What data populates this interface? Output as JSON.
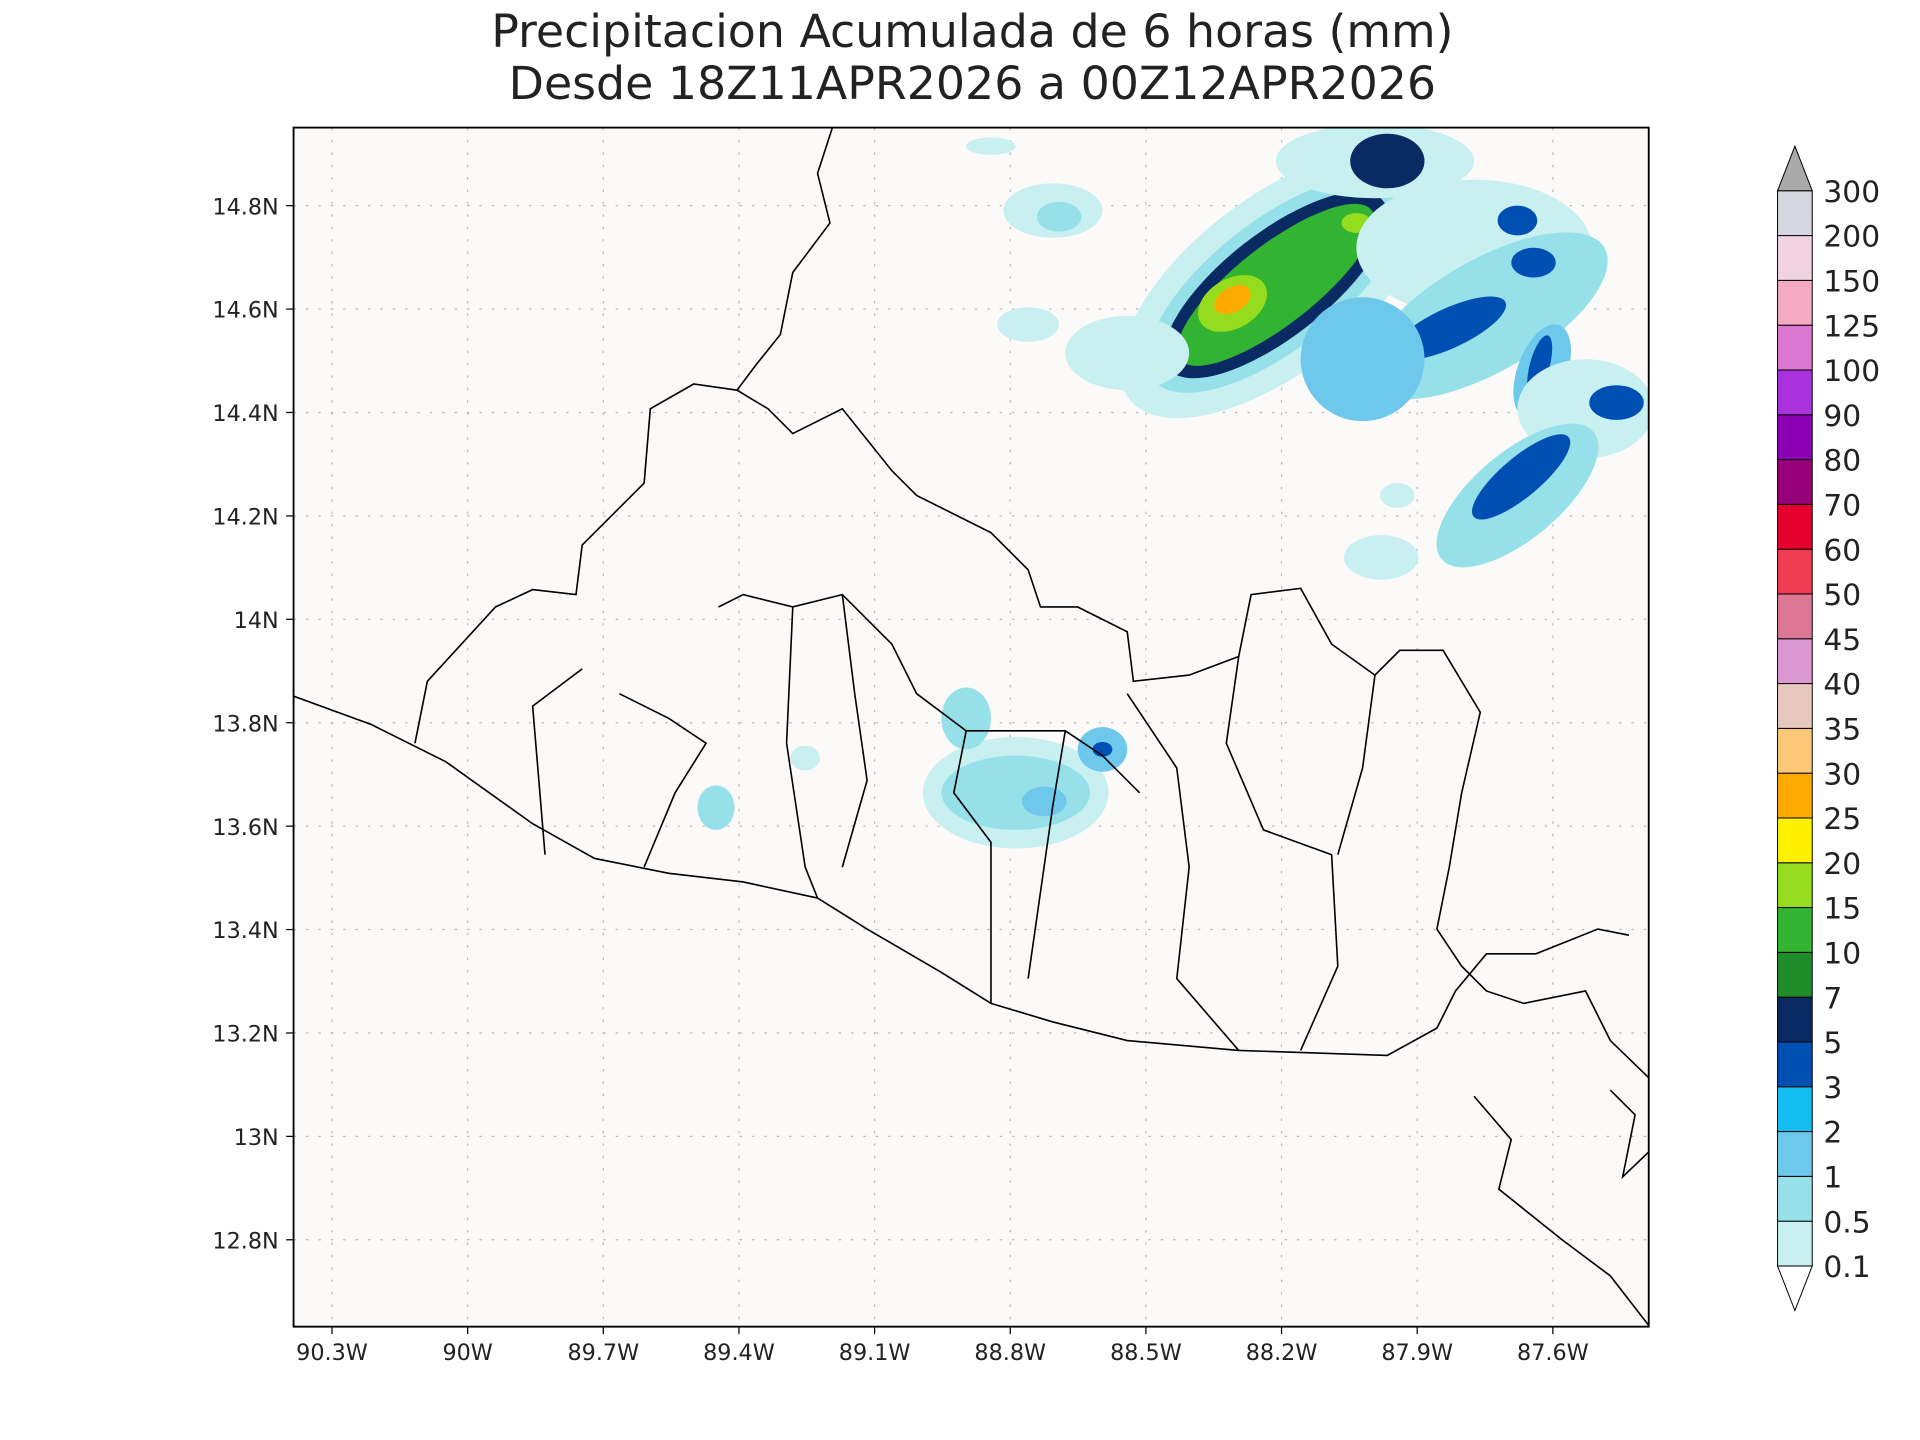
{
  "title": "Precipitacion Acumulada de 6 horas (mm)",
  "subtitle": "Desde 18Z11APR2026 a 00Z12APR2026",
  "xlim": [
    -90.385,
    -87.388
  ],
  "ylim": [
    12.632,
    14.951
  ],
  "xticks": [
    {
      "value": -90.3,
      "label": "90.3W"
    },
    {
      "value": -90.0,
      "label": "90W"
    },
    {
      "value": -89.7,
      "label": "89.7W"
    },
    {
      "value": -89.4,
      "label": "89.4W"
    },
    {
      "value": -89.1,
      "label": "89.1W"
    },
    {
      "value": -88.8,
      "label": "88.8W"
    },
    {
      "value": -88.5,
      "label": "88.5W"
    },
    {
      "value": -88.2,
      "label": "88.2W"
    },
    {
      "value": -87.9,
      "label": "87.9W"
    },
    {
      "value": -87.6,
      "label": "87.6W"
    }
  ],
  "yticks": [
    {
      "value": 14.8,
      "label": "14.8N"
    },
    {
      "value": 14.6,
      "label": "14.6N"
    },
    {
      "value": 14.4,
      "label": "14.4N"
    },
    {
      "value": 14.2,
      "label": "14.2N"
    },
    {
      "value": 14.0,
      "label": "14N"
    },
    {
      "value": 13.8,
      "label": "13.8N"
    },
    {
      "value": 13.6,
      "label": "13.6N"
    },
    {
      "value": 13.4,
      "label": "13.4N"
    },
    {
      "value": 13.2,
      "label": "13.2N"
    },
    {
      "value": 13.0,
      "label": "13N"
    },
    {
      "value": 12.8,
      "label": "12.8N"
    }
  ],
  "grid": true,
  "colorbar": {
    "levels": [
      0.1,
      0.5,
      1,
      2,
      3,
      5,
      7,
      10,
      15,
      20,
      25,
      30,
      35,
      40,
      45,
      50,
      60,
      70,
      80,
      90,
      100,
      125,
      150,
      200,
      300
    ],
    "colors": [
      "#c8f0f0",
      "#96e0ea",
      "#6ec8ec",
      "#14bef0",
      "#0050b4",
      "#0a2a64",
      "#1e8c28",
      "#32b432",
      "#96dc1e",
      "#fff000",
      "#ffaa00",
      "#fac878",
      "#e6c8be",
      "#dc96d2",
      "#dc7896",
      "#f03c50",
      "#e6002d",
      "#960078",
      "#8c00b4",
      "#aa32dc",
      "#dc78d2",
      "#f5aac3",
      "#f0d2e1",
      "#d7d7e1"
    ],
    "under_color": "#ffffff",
    "over_color": "#aaaaaa"
  }
}
